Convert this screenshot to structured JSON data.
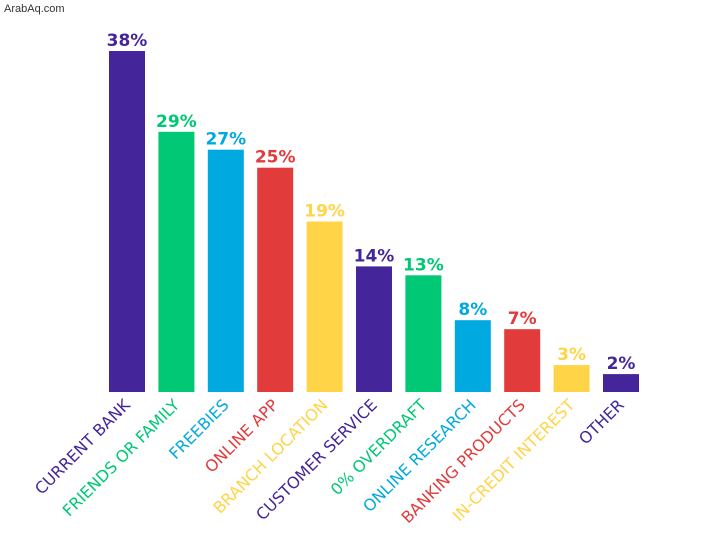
{
  "watermark": "ArabAq.com",
  "colors": {
    "purple": "#45259a",
    "green": "#00c875",
    "blue": "#00a9e0",
    "red": "#e23b3b",
    "yellow": "#ffd447"
  },
  "chart_data": {
    "type": "bar",
    "categories": [
      "CURRENT BANK",
      "FRIENDS OR FAMILY",
      "FREEBIES",
      "ONLINE APP",
      "BRANCH LOCATION",
      "CUSTOMER SERVICE",
      "0% OVERDRAFT",
      "ONLINE RESEARCH",
      "BANKING PRODUCTS",
      "IN-CREDIT INTEREST",
      "OTHER"
    ],
    "values": [
      38,
      29,
      27,
      25,
      19,
      14,
      13,
      8,
      7,
      3,
      2
    ],
    "value_labels": [
      "38%",
      "29%",
      "27%",
      "25%",
      "19%",
      "14%",
      "13%",
      "8%",
      "7%",
      "3%",
      "2%"
    ],
    "bar_colors": [
      "purple",
      "green",
      "blue",
      "red",
      "yellow",
      "purple",
      "green",
      "blue",
      "red",
      "yellow",
      "purple"
    ],
    "ylim": [
      0,
      38
    ],
    "grid": false,
    "legend": "none"
  }
}
